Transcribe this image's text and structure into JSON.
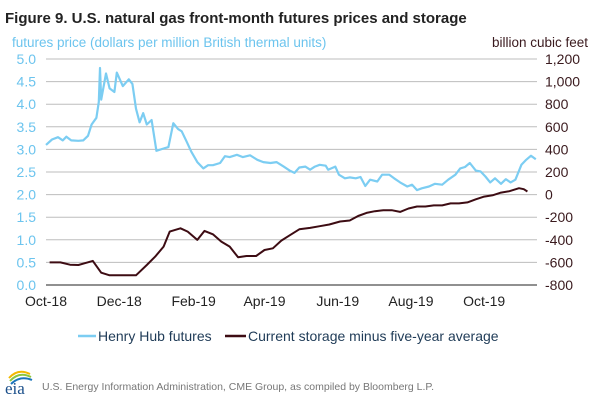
{
  "chart_data": {
    "type": "line",
    "title": "Figure 9. U.S. natural gas front-month futures prices and storage",
    "ylabel_left": "futures price (dollars per million British thermal units)",
    "ylabel_right": "billion cubic feet",
    "xlim": [
      "2018-10-01",
      "2019-11-14"
    ],
    "ylim_left": [
      0,
      5
    ],
    "ylim_right": [
      -800,
      1200
    ],
    "grid": true,
    "legend_position": "bottom",
    "x_ticks": [
      {
        "label": "Oct-18",
        "date": "2018-10-01"
      },
      {
        "label": "Dec-18",
        "date": "2018-12-01"
      },
      {
        "label": "Feb-19",
        "date": "2019-02-01"
      },
      {
        "label": "Apr-19",
        "date": "2019-04-01"
      },
      {
        "label": "Jun-19",
        "date": "2019-06-01"
      },
      {
        "label": "Aug-19",
        "date": "2019-08-01"
      },
      {
        "label": "Oct-19",
        "date": "2019-10-01"
      }
    ],
    "y_ticks_left": [
      "0.0",
      "0.5",
      "1.0",
      "1.5",
      "2.0",
      "2.5",
      "3.0",
      "3.5",
      "4.0",
      "4.5",
      "5.0"
    ],
    "y_ticks_right": [
      "-800",
      "-600",
      "-400",
      "-200",
      "0",
      "200",
      "400",
      "600",
      "800",
      "1,000",
      "1,200"
    ],
    "series": [
      {
        "name": "Henry Hub futures",
        "axis": "left",
        "color": "#7ccdf2",
        "points": [
          [
            "2018-10-01",
            3.1
          ],
          [
            "2018-10-06",
            3.22
          ],
          [
            "2018-10-11",
            3.27
          ],
          [
            "2018-10-15",
            3.2
          ],
          [
            "2018-10-18",
            3.28
          ],
          [
            "2018-10-22",
            3.2
          ],
          [
            "2018-10-28",
            3.19
          ],
          [
            "2018-11-01",
            3.2
          ],
          [
            "2018-11-05",
            3.3
          ],
          [
            "2018-11-08",
            3.55
          ],
          [
            "2018-11-12",
            3.7
          ],
          [
            "2018-11-14",
            4.05
          ],
          [
            "2018-11-15",
            4.8
          ],
          [
            "2018-11-16",
            4.1
          ],
          [
            "2018-11-20",
            4.68
          ],
          [
            "2018-11-23",
            4.35
          ],
          [
            "2018-11-27",
            4.27
          ],
          [
            "2018-11-29",
            4.7
          ],
          [
            "2018-12-04",
            4.4
          ],
          [
            "2018-12-09",
            4.55
          ],
          [
            "2018-12-12",
            4.45
          ],
          [
            "2018-12-15",
            3.9
          ],
          [
            "2018-12-18",
            3.6
          ],
          [
            "2018-12-21",
            3.8
          ],
          [
            "2018-12-24",
            3.55
          ],
          [
            "2018-12-28",
            3.65
          ],
          [
            "2019-01-01",
            2.97
          ],
          [
            "2019-01-07",
            3.02
          ],
          [
            "2019-01-11",
            3.05
          ],
          [
            "2019-01-15",
            3.58
          ],
          [
            "2019-01-19",
            3.45
          ],
          [
            "2019-01-22",
            3.4
          ],
          [
            "2019-01-26",
            3.18
          ],
          [
            "2019-01-30",
            2.95
          ],
          [
            "2019-02-04",
            2.72
          ],
          [
            "2019-02-09",
            2.58
          ],
          [
            "2019-02-13",
            2.65
          ],
          [
            "2019-02-17",
            2.65
          ],
          [
            "2019-02-23",
            2.7
          ],
          [
            "2019-02-27",
            2.85
          ],
          [
            "2019-03-03",
            2.83
          ],
          [
            "2019-03-09",
            2.88
          ],
          [
            "2019-03-14",
            2.83
          ],
          [
            "2019-03-20",
            2.87
          ],
          [
            "2019-03-26",
            2.77
          ],
          [
            "2019-03-31",
            2.72
          ],
          [
            "2019-04-06",
            2.7
          ],
          [
            "2019-04-11",
            2.72
          ],
          [
            "2019-04-17",
            2.62
          ],
          [
            "2019-04-22",
            2.53
          ],
          [
            "2019-04-26",
            2.48
          ],
          [
            "2019-04-30",
            2.6
          ],
          [
            "2019-05-05",
            2.62
          ],
          [
            "2019-05-09",
            2.55
          ],
          [
            "2019-05-13",
            2.62
          ],
          [
            "2019-05-17",
            2.66
          ],
          [
            "2019-05-22",
            2.64
          ],
          [
            "2019-05-24",
            2.55
          ],
          [
            "2019-05-30",
            2.62
          ],
          [
            "2019-06-02",
            2.44
          ],
          [
            "2019-06-07",
            2.36
          ],
          [
            "2019-06-11",
            2.38
          ],
          [
            "2019-06-16",
            2.36
          ],
          [
            "2019-06-20",
            2.39
          ],
          [
            "2019-06-24",
            2.19
          ],
          [
            "2019-06-28",
            2.33
          ],
          [
            "2019-07-04",
            2.29
          ],
          [
            "2019-07-08",
            2.44
          ],
          [
            "2019-07-14",
            2.44
          ],
          [
            "2019-07-18",
            2.36
          ],
          [
            "2019-07-23",
            2.27
          ],
          [
            "2019-07-29",
            2.18
          ],
          [
            "2019-08-02",
            2.22
          ],
          [
            "2019-08-06",
            2.1
          ],
          [
            "2019-08-10",
            2.14
          ],
          [
            "2019-08-16",
            2.18
          ],
          [
            "2019-08-21",
            2.24
          ],
          [
            "2019-08-27",
            2.22
          ],
          [
            "2019-09-01",
            2.33
          ],
          [
            "2019-09-07",
            2.44
          ],
          [
            "2019-09-11",
            2.58
          ],
          [
            "2019-09-15",
            2.61
          ],
          [
            "2019-09-19",
            2.7
          ],
          [
            "2019-09-24",
            2.53
          ],
          [
            "2019-09-28",
            2.51
          ],
          [
            "2019-10-02",
            2.4
          ],
          [
            "2019-10-06",
            2.27
          ],
          [
            "2019-10-10",
            2.36
          ],
          [
            "2019-10-15",
            2.24
          ],
          [
            "2019-10-19",
            2.34
          ],
          [
            "2019-10-23",
            2.27
          ],
          [
            "2019-10-27",
            2.33
          ],
          [
            "2019-11-01",
            2.66
          ],
          [
            "2019-11-05",
            2.77
          ],
          [
            "2019-11-09",
            2.86
          ],
          [
            "2019-11-13",
            2.78
          ]
        ]
      },
      {
        "name": "Current storage minus five-year average",
        "axis": "right",
        "color": "#3d0c13",
        "points": [
          [
            "2018-10-04",
            -600
          ],
          [
            "2018-10-13",
            -600
          ],
          [
            "2018-10-21",
            -620
          ],
          [
            "2018-10-28",
            -623
          ],
          [
            "2018-11-02",
            -608
          ],
          [
            "2018-11-09",
            -587
          ],
          [
            "2018-11-16",
            -691
          ],
          [
            "2018-11-23",
            -714
          ],
          [
            "2018-12-02",
            -714
          ],
          [
            "2018-12-09",
            -714
          ],
          [
            "2018-12-15",
            -714
          ],
          [
            "2018-12-24",
            -623
          ],
          [
            "2018-12-31",
            -549
          ],
          [
            "2019-01-07",
            -460
          ],
          [
            "2019-01-12",
            -327
          ],
          [
            "2019-01-21",
            -298
          ],
          [
            "2019-01-27",
            -327
          ],
          [
            "2019-02-04",
            -401
          ],
          [
            "2019-02-10",
            -321
          ],
          [
            "2019-02-17",
            -351
          ],
          [
            "2019-02-24",
            -416
          ],
          [
            "2019-03-03",
            -460
          ],
          [
            "2019-03-10",
            -555
          ],
          [
            "2019-03-17",
            -543
          ],
          [
            "2019-03-25",
            -543
          ],
          [
            "2019-04-01",
            -490
          ],
          [
            "2019-04-08",
            -475
          ],
          [
            "2019-04-15",
            -407
          ],
          [
            "2019-04-22",
            -360
          ],
          [
            "2019-04-30",
            -307
          ],
          [
            "2019-05-09",
            -295
          ],
          [
            "2019-05-17",
            -280
          ],
          [
            "2019-05-25",
            -265
          ],
          [
            "2019-06-03",
            -238
          ],
          [
            "2019-06-11",
            -229
          ],
          [
            "2019-06-18",
            -189
          ],
          [
            "2019-06-25",
            -162
          ],
          [
            "2019-07-02",
            -147
          ],
          [
            "2019-07-09",
            -138
          ],
          [
            "2019-07-16",
            -138
          ],
          [
            "2019-07-23",
            -153
          ],
          [
            "2019-07-30",
            -123
          ],
          [
            "2019-08-06",
            -105
          ],
          [
            "2019-08-13",
            -105
          ],
          [
            "2019-08-20",
            -96
          ],
          [
            "2019-08-27",
            -96
          ],
          [
            "2019-09-03",
            -78
          ],
          [
            "2019-09-10",
            -78
          ],
          [
            "2019-09-17",
            -69
          ],
          [
            "2019-09-24",
            -42
          ],
          [
            "2019-10-01",
            -18
          ],
          [
            "2019-10-08",
            -6
          ],
          [
            "2019-10-15",
            18
          ],
          [
            "2019-10-22",
            30
          ],
          [
            "2019-10-30",
            57
          ],
          [
            "2019-11-03",
            48
          ],
          [
            "2019-11-06",
            27
          ]
        ]
      }
    ]
  },
  "legend": {
    "items": [
      "Henry Hub futures",
      "Current storage minus five-year average"
    ]
  },
  "footer": {
    "logo_text": "eia",
    "source": "U.S. Energy Information Administration, CME Group, as compiled by Bloomberg L.P."
  },
  "colors": {
    "price": "#7ccdf2",
    "storage": "#3d0c13",
    "grid": "#bdbdbd"
  }
}
